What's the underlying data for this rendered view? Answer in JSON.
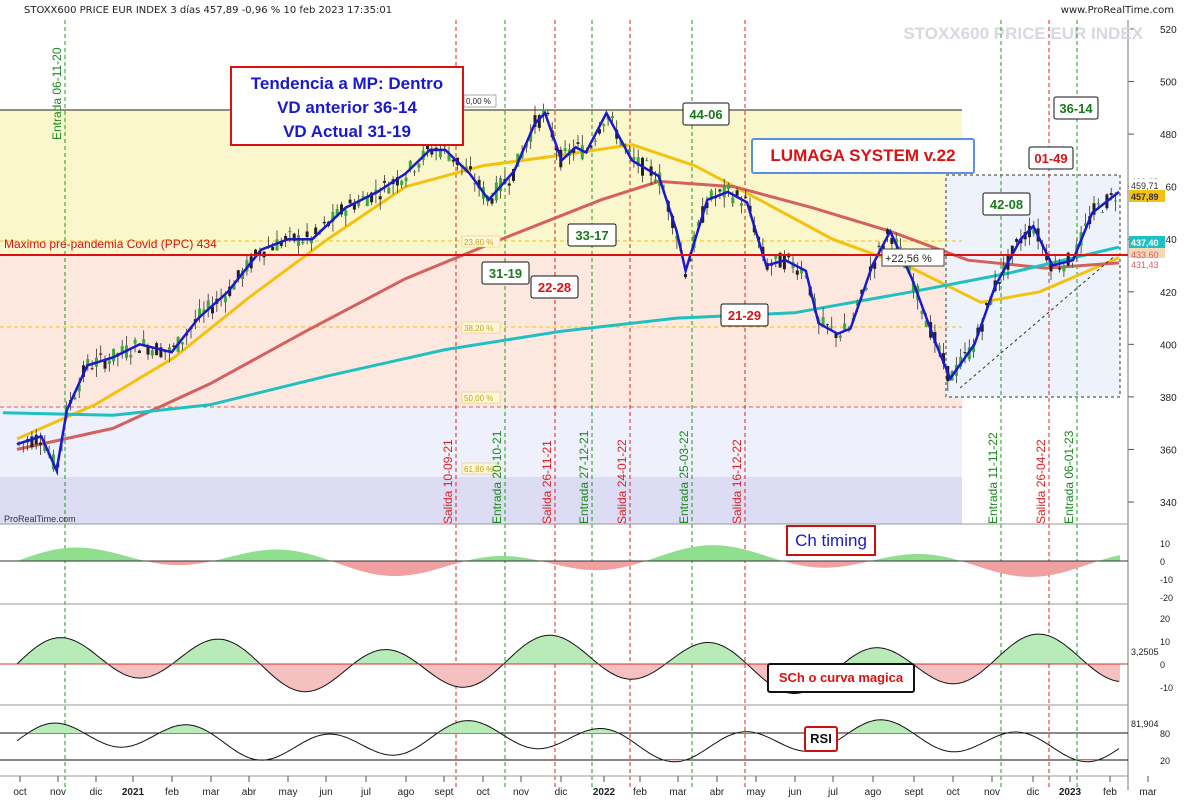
{
  "header": {
    "instrument": "STOXX600 PRICE EUR INDEX",
    "timeframe": "3 días",
    "last": "457,89",
    "change": "-0,96 %",
    "datetime": "10 feb 2023 17:35:01",
    "site": "www.ProRealTime.com",
    "watermark": "STOXX600 PRICE EUR INDEX",
    "credit": "ProRealTime.com"
  },
  "colors": {
    "price_line": "#1a1acc",
    "ma_yellow": "#f2c20f",
    "ma_red": "#d46060",
    "ma_teal": "#20c0c0",
    "candle_up": "#3aaa3a",
    "candle_down": "#222222",
    "red_annot": "#e01010",
    "green_annot": "#1a7a1a",
    "blue_box": "#5b8ee6",
    "osc_pos": "#8fdf8f",
    "osc_neg": "#f0a0a0"
  },
  "annotations": {
    "trend_box": [
      "Tendencia a MP: Dentro",
      "VD anterior 36-14",
      "VD Actual 31-19"
    ],
    "lumaga": "LUMAGA SYSTEM v.22",
    "ppc_label": "Maximo pre-pandemia Covid (PPC)  434",
    "pct_label": "+22,56 %",
    "pct_zero": "0,00 %",
    "ch_timing": "Ch timing",
    "sch": "SCh o curva magica",
    "rsi": "RSI",
    "score_boxes": [
      {
        "text": "44-06",
        "color": "green"
      },
      {
        "text": "36-14",
        "color": "green"
      },
      {
        "text": "01-49",
        "color": "red"
      },
      {
        "text": "42-08",
        "color": "green"
      },
      {
        "text": "33-17",
        "color": "green"
      },
      {
        "text": "31-19",
        "color": "green"
      },
      {
        "text": "22-28",
        "color": "red"
      },
      {
        "text": "21-29",
        "color": "red"
      }
    ],
    "fib_levels": [
      "23,60 %",
      "38,20 %",
      "50,00 %",
      "61,80 %"
    ],
    "price_tags": [
      "460,40",
      "459,71",
      "457,89",
      "437,40",
      "433,60",
      "431,43"
    ]
  },
  "signals": [
    {
      "text": "Entrada 06-11-20",
      "color": "green"
    },
    {
      "text": "Salida 10-09-21",
      "color": "red"
    },
    {
      "text": "Entrada 20-10-21",
      "color": "green"
    },
    {
      "text": "Salida 26-11-21",
      "color": "red"
    },
    {
      "text": "Entrada 27-12-21",
      "color": "green"
    },
    {
      "text": "Salida 24-01-22",
      "color": "red"
    },
    {
      "text": "Entrada 25-03-22",
      "color": "green"
    },
    {
      "text": "Salida 16-12-22",
      "color": "red"
    },
    {
      "text": "Entrada 11-11-22",
      "color": "green"
    },
    {
      "text": "Salida 26-04-22",
      "color": "red"
    },
    {
      "text": "Entrada 06-01-23",
      "color": "green"
    }
  ],
  "chart_data": {
    "type": "line",
    "title": "STOXX600 PRICE EUR INDEX",
    "ylim": [
      330,
      522
    ],
    "y_ticks": [
      340,
      360,
      380,
      400,
      420,
      440,
      460,
      480,
      500,
      520
    ],
    "x_ticks": [
      "oct",
      "nov",
      "dic",
      "2021",
      "feb",
      "mar",
      "abr",
      "may",
      "jun",
      "jul",
      "ago",
      "sept",
      "oct",
      "nov",
      "dic",
      "2022",
      "feb",
      "mar",
      "abr",
      "may",
      "jun",
      "jul",
      "ago",
      "sept",
      "oct",
      "nov",
      "dic",
      "2023",
      "feb",
      "mar"
    ],
    "reference_line": 434,
    "price_points": [
      [
        "2020-10-01",
        362
      ],
      [
        "2020-10-20",
        365
      ],
      [
        "2020-11-01",
        352
      ],
      [
        "2020-11-09",
        375
      ],
      [
        "2020-11-25",
        392
      ],
      [
        "2020-12-15",
        395
      ],
      [
        "2021-01-05",
        400
      ],
      [
        "2021-01-30",
        397
      ],
      [
        "2021-02-20",
        410
      ],
      [
        "2021-03-15",
        420
      ],
      [
        "2021-04-10",
        436
      ],
      [
        "2021-05-01",
        440
      ],
      [
        "2021-05-20",
        440
      ],
      [
        "2021-06-15",
        452
      ],
      [
        "2021-07-10",
        458
      ],
      [
        "2021-08-01",
        465
      ],
      [
        "2021-08-20",
        474
      ],
      [
        "2021-09-01",
        474
      ],
      [
        "2021-09-20",
        465
      ],
      [
        "2021-10-05",
        455
      ],
      [
        "2021-10-25",
        466
      ],
      [
        "2021-11-10",
        484
      ],
      [
        "2021-11-18",
        488
      ],
      [
        "2021-12-01",
        470
      ],
      [
        "2021-12-12",
        475
      ],
      [
        "2021-12-20",
        473
      ],
      [
        "2022-01-05",
        488
      ],
      [
        "2022-01-25",
        470
      ],
      [
        "2022-02-15",
        464
      ],
      [
        "2022-03-01",
        443
      ],
      [
        "2022-03-08",
        428
      ],
      [
        "2022-03-25",
        455
      ],
      [
        "2022-04-10",
        458
      ],
      [
        "2022-04-25",
        454
      ],
      [
        "2022-05-10",
        430
      ],
      [
        "2022-05-25",
        432
      ],
      [
        "2022-06-10",
        428
      ],
      [
        "2022-06-20",
        408
      ],
      [
        "2022-07-05",
        404
      ],
      [
        "2022-07-15",
        406
      ],
      [
        "2022-08-01",
        430
      ],
      [
        "2022-08-15",
        443
      ],
      [
        "2022-09-01",
        425
      ],
      [
        "2022-09-20",
        400
      ],
      [
        "2022-10-01",
        387
      ],
      [
        "2022-10-20",
        400
      ],
      [
        "2022-11-05",
        422
      ],
      [
        "2022-11-25",
        440
      ],
      [
        "2022-12-05",
        445
      ],
      [
        "2022-12-20",
        430
      ],
      [
        "2023-01-05",
        432
      ],
      [
        "2023-01-20",
        450
      ],
      [
        "2023-02-10",
        458
      ]
    ],
    "series": [
      {
        "name": "",
        "color": "#f2c20f",
        "points": [
          [
            "2020-10-01",
            364
          ],
          [
            "2020-12-01",
            377
          ],
          [
            "2021-02-01",
            395
          ],
          [
            "2021-04-01",
            418
          ],
          [
            "2021-06-01",
            440
          ],
          [
            "2021-08-01",
            460
          ],
          [
            "2021-10-01",
            468
          ],
          [
            "2021-12-01",
            472
          ],
          [
            "2022-01-25",
            476
          ],
          [
            "2022-03-15",
            468
          ],
          [
            "2022-05-01",
            456
          ],
          [
            "2022-07-01",
            440
          ],
          [
            "2022-09-01",
            429
          ],
          [
            "2022-10-25",
            416
          ],
          [
            "2022-12-10",
            420
          ],
          [
            "2023-02-10",
            433
          ]
        ]
      },
      {
        "name": "",
        "color": "#d46060",
        "points": [
          [
            "2020-10-01",
            360
          ],
          [
            "2020-12-15",
            368
          ],
          [
            "2021-03-01",
            385
          ],
          [
            "2021-05-15",
            405
          ],
          [
            "2021-08-01",
            425
          ],
          [
            "2021-10-15",
            440
          ],
          [
            "2022-01-01",
            455
          ],
          [
            "2022-02-15",
            462
          ],
          [
            "2022-04-15",
            460
          ],
          [
            "2022-06-15",
            452
          ],
          [
            "2022-08-15",
            443
          ],
          [
            "2022-10-15",
            432
          ],
          [
            "2022-12-15",
            429
          ],
          [
            "2023-02-10",
            431
          ]
        ]
      },
      {
        "name": "",
        "color": "#20c0c0",
        "points": [
          [
            "2020-09-20",
            374
          ],
          [
            "2020-12-15",
            373
          ],
          [
            "2021-03-01",
            377
          ],
          [
            "2021-06-01",
            388
          ],
          [
            "2021-09-01",
            398
          ],
          [
            "2021-12-01",
            405
          ],
          [
            "2022-03-01",
            410
          ],
          [
            "2022-06-01",
            412
          ],
          [
            "2022-09-01",
            420
          ],
          [
            "2022-11-15",
            427
          ],
          [
            "2023-02-10",
            437
          ]
        ]
      }
    ],
    "oscillators": [
      {
        "name": "Ch timing",
        "ylim": [
          -22,
          14
        ],
        "ticks": [
          10,
          0,
          -10,
          -20
        ]
      },
      {
        "name": "SCh o curva magica",
        "ylim": [
          -16,
          24
        ],
        "ticks": [
          20,
          10,
          0,
          -10
        ],
        "last_value": "3,2505"
      },
      {
        "name": "RSI",
        "ylim": [
          0,
          100
        ],
        "ticks": [
          80,
          20
        ],
        "last_value": "81,904"
      }
    ]
  }
}
